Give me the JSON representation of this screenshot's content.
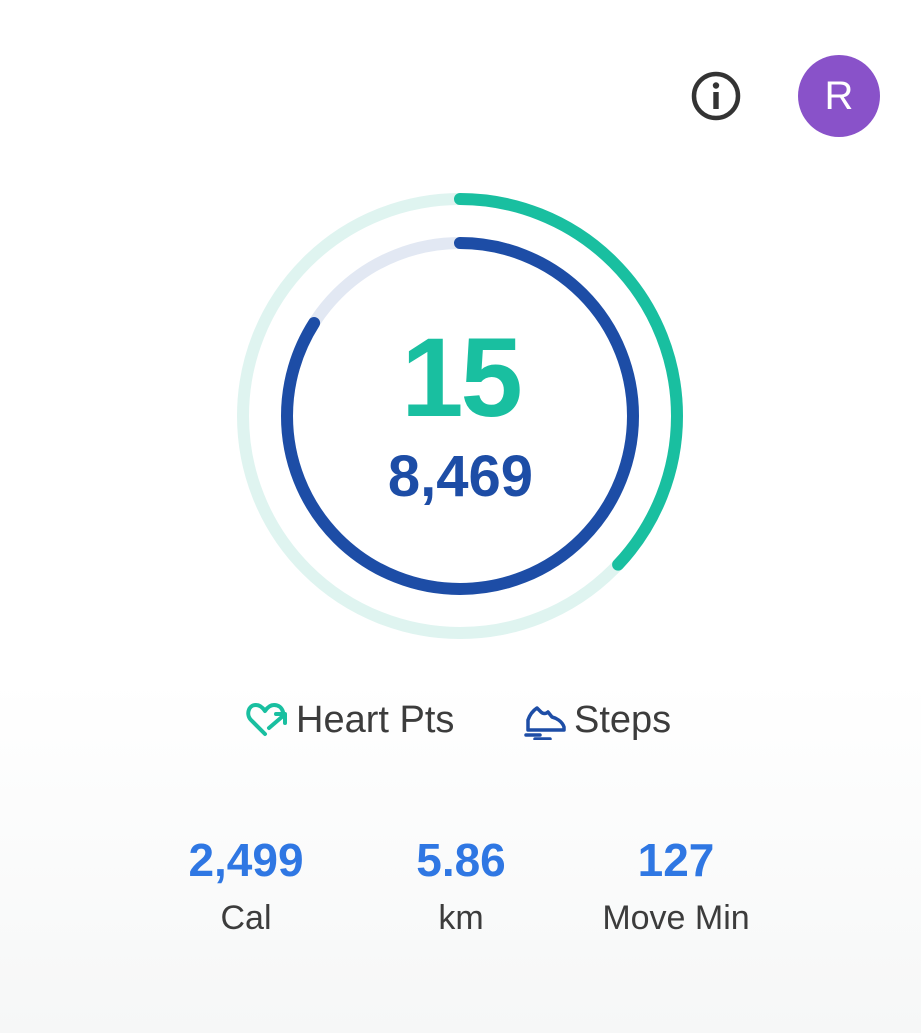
{
  "header": {
    "info_icon": "info-icon",
    "avatar_initial": "R",
    "avatar_color": "#8952c9"
  },
  "summary": {
    "heart_points": "15",
    "steps": "8,469",
    "heart_points_progress": 0.37,
    "steps_progress": 0.84,
    "heart_color": "#19bfa0",
    "steps_color": "#1d4da6"
  },
  "legend": {
    "heart_label": "Heart Pts",
    "steps_label": "Steps",
    "heart_icon": "heart-arrow-icon",
    "steps_icon": "shoe-icon"
  },
  "stats": [
    {
      "value": "2,499",
      "label": "Cal"
    },
    {
      "value": "5.86",
      "label": "km"
    },
    {
      "value": "127",
      "label": "Move Min"
    }
  ]
}
